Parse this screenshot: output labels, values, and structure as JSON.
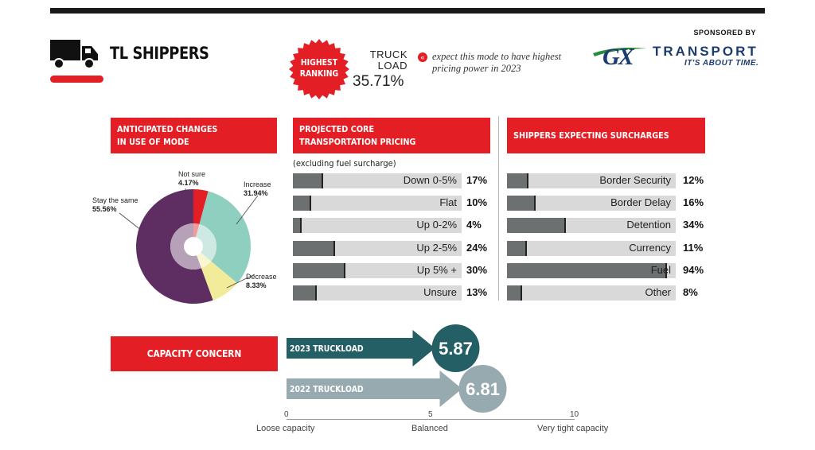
{
  "header": {
    "title": "TL SHIPPERS",
    "badge_line1": "HIGHEST",
    "badge_line2": "RANKING",
    "mode_line1": "TRUCK",
    "mode_line2": "LOAD",
    "mode_value": "35.71%",
    "expect_text": "expect this mode to have highest pricing power in 2023",
    "sponsored_label": "SPONSORED BY",
    "sponsor_logo": "GX",
    "sponsor_name": "TRANSPORT",
    "sponsor_tagline": "IT'S ABOUT TIME."
  },
  "panels": {
    "changes_title_1": "ANTICIPATED CHANGES",
    "changes_title_2": "IN USE OF MODE",
    "pricing_title_1": "PROJECTED CORE",
    "pricing_title_2": "TRANSPORTATION PRICING",
    "pricing_subtitle": "(excluding fuel surcharge)",
    "surcharge_title": "SHIPPERS EXPECTING SURCHARGES",
    "capacity_title": "CAPACITY CONCERN"
  },
  "colors": {
    "accent_red": "#e31e24",
    "bar_fill": "#6d7071",
    "bar_bg": "#d9d9d9",
    "arrow_2023": "#255f66",
    "arrow_2022": "#97aab0"
  },
  "chart_data": [
    {
      "type": "pie",
      "title": "ANTICIPATED CHANGES IN USE OF MODE",
      "slices": [
        {
          "label": "Not sure",
          "value": 4.17,
          "display": "4.17%",
          "color": "#e31e24"
        },
        {
          "label": "Increase",
          "value": 31.94,
          "display": "31.94%",
          "color": "#8fcfbf"
        },
        {
          "label": "Decrease",
          "value": 8.33,
          "display": "8.33%",
          "color": "#f2eb9a"
        },
        {
          "label": "Stay the same",
          "value": 55.56,
          "display": "55.56%",
          "color": "#5e2d62"
        }
      ]
    },
    {
      "type": "bar",
      "orientation": "horizontal",
      "title": "PROJECTED CORE TRANSPORTATION PRICING",
      "subtitle": "(excluding fuel surcharge)",
      "categories": [
        "Down 0-5%",
        "Flat",
        "Up 0-2%",
        "Up 2-5%",
        "Up 5% +",
        "Unsure"
      ],
      "values": [
        17,
        10,
        4,
        24,
        30,
        13
      ],
      "value_labels": [
        "17%",
        "10%",
        "4%",
        "24%",
        "30%",
        "13%"
      ],
      "xlim": [
        0,
        100
      ]
    },
    {
      "type": "bar",
      "orientation": "horizontal",
      "title": "SHIPPERS EXPECTING SURCHARGES",
      "categories": [
        "Border Security",
        "Border Delay",
        "Detention",
        "Currency",
        "Fuel",
        "Other"
      ],
      "values": [
        12,
        16,
        34,
        11,
        94,
        8
      ],
      "value_labels": [
        "12%",
        "16%",
        "34%",
        "11%",
        "94%",
        "8%"
      ],
      "xlim": [
        0,
        100
      ]
    },
    {
      "type": "bar",
      "orientation": "horizontal",
      "title": "CAPACITY CONCERN",
      "categories": [
        "2023 TRUCKLOAD",
        "2022 TRUCKLOAD"
      ],
      "values": [
        5.87,
        6.81
      ],
      "value_labels": [
        "5.87",
        "6.81"
      ],
      "xlim": [
        0,
        10
      ],
      "ticks": [
        "0",
        "5",
        "10"
      ],
      "scale_labels": [
        "Loose capacity",
        "Balanced",
        "Very tight capacity"
      ]
    }
  ]
}
